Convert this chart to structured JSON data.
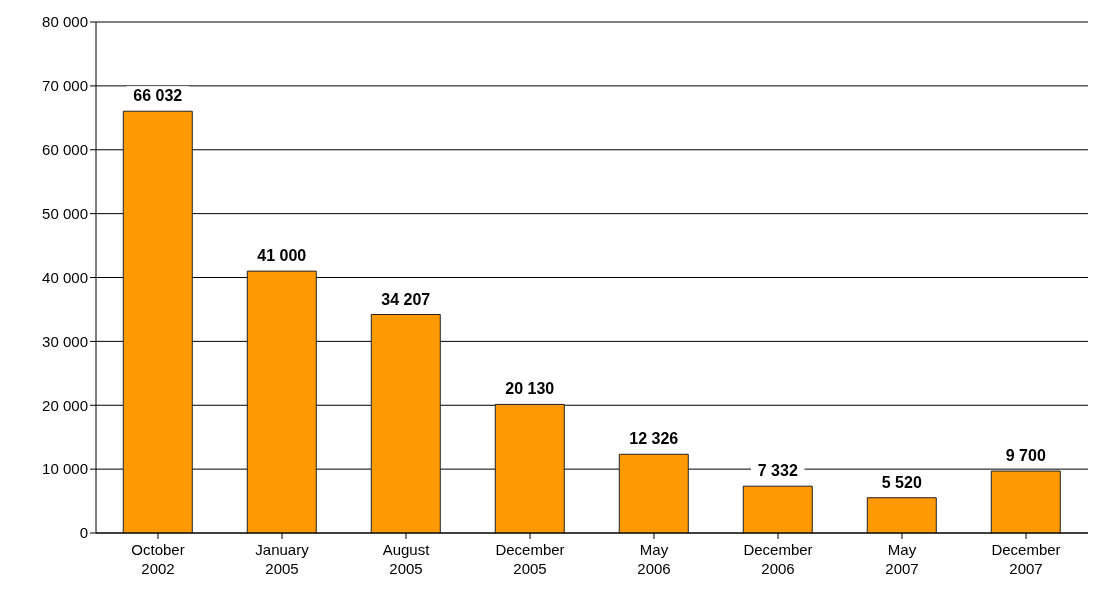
{
  "chart_data": {
    "type": "bar",
    "categories": [
      "October 2002",
      "January 2005",
      "August 2005",
      "December 2005",
      "May 2006",
      "December 2006",
      "May 2007",
      "December 2007"
    ],
    "values": [
      66032,
      41000,
      34207,
      20130,
      12326,
      7332,
      5520,
      9700
    ],
    "value_labels": [
      "66 032",
      "41 000",
      "34 207",
      "20 130",
      "12 326",
      "7 332",
      "5 520",
      "9 700"
    ],
    "color": "#ff9900",
    "ylim": [
      0,
      80000
    ],
    "yticks": [
      {
        "value": 0,
        "label": "0"
      },
      {
        "value": 10000,
        "label": "10 000"
      },
      {
        "value": 20000,
        "label": "20 000"
      },
      {
        "value": 30000,
        "label": "30 000"
      },
      {
        "value": 40000,
        "label": "40 000"
      },
      {
        "value": 50000,
        "label": "50 000"
      },
      {
        "value": 60000,
        "label": "60 000"
      },
      {
        "value": 70000,
        "label": "70 000"
      },
      {
        "value": 80000,
        "label": "80 000"
      }
    ],
    "grid": "y"
  }
}
